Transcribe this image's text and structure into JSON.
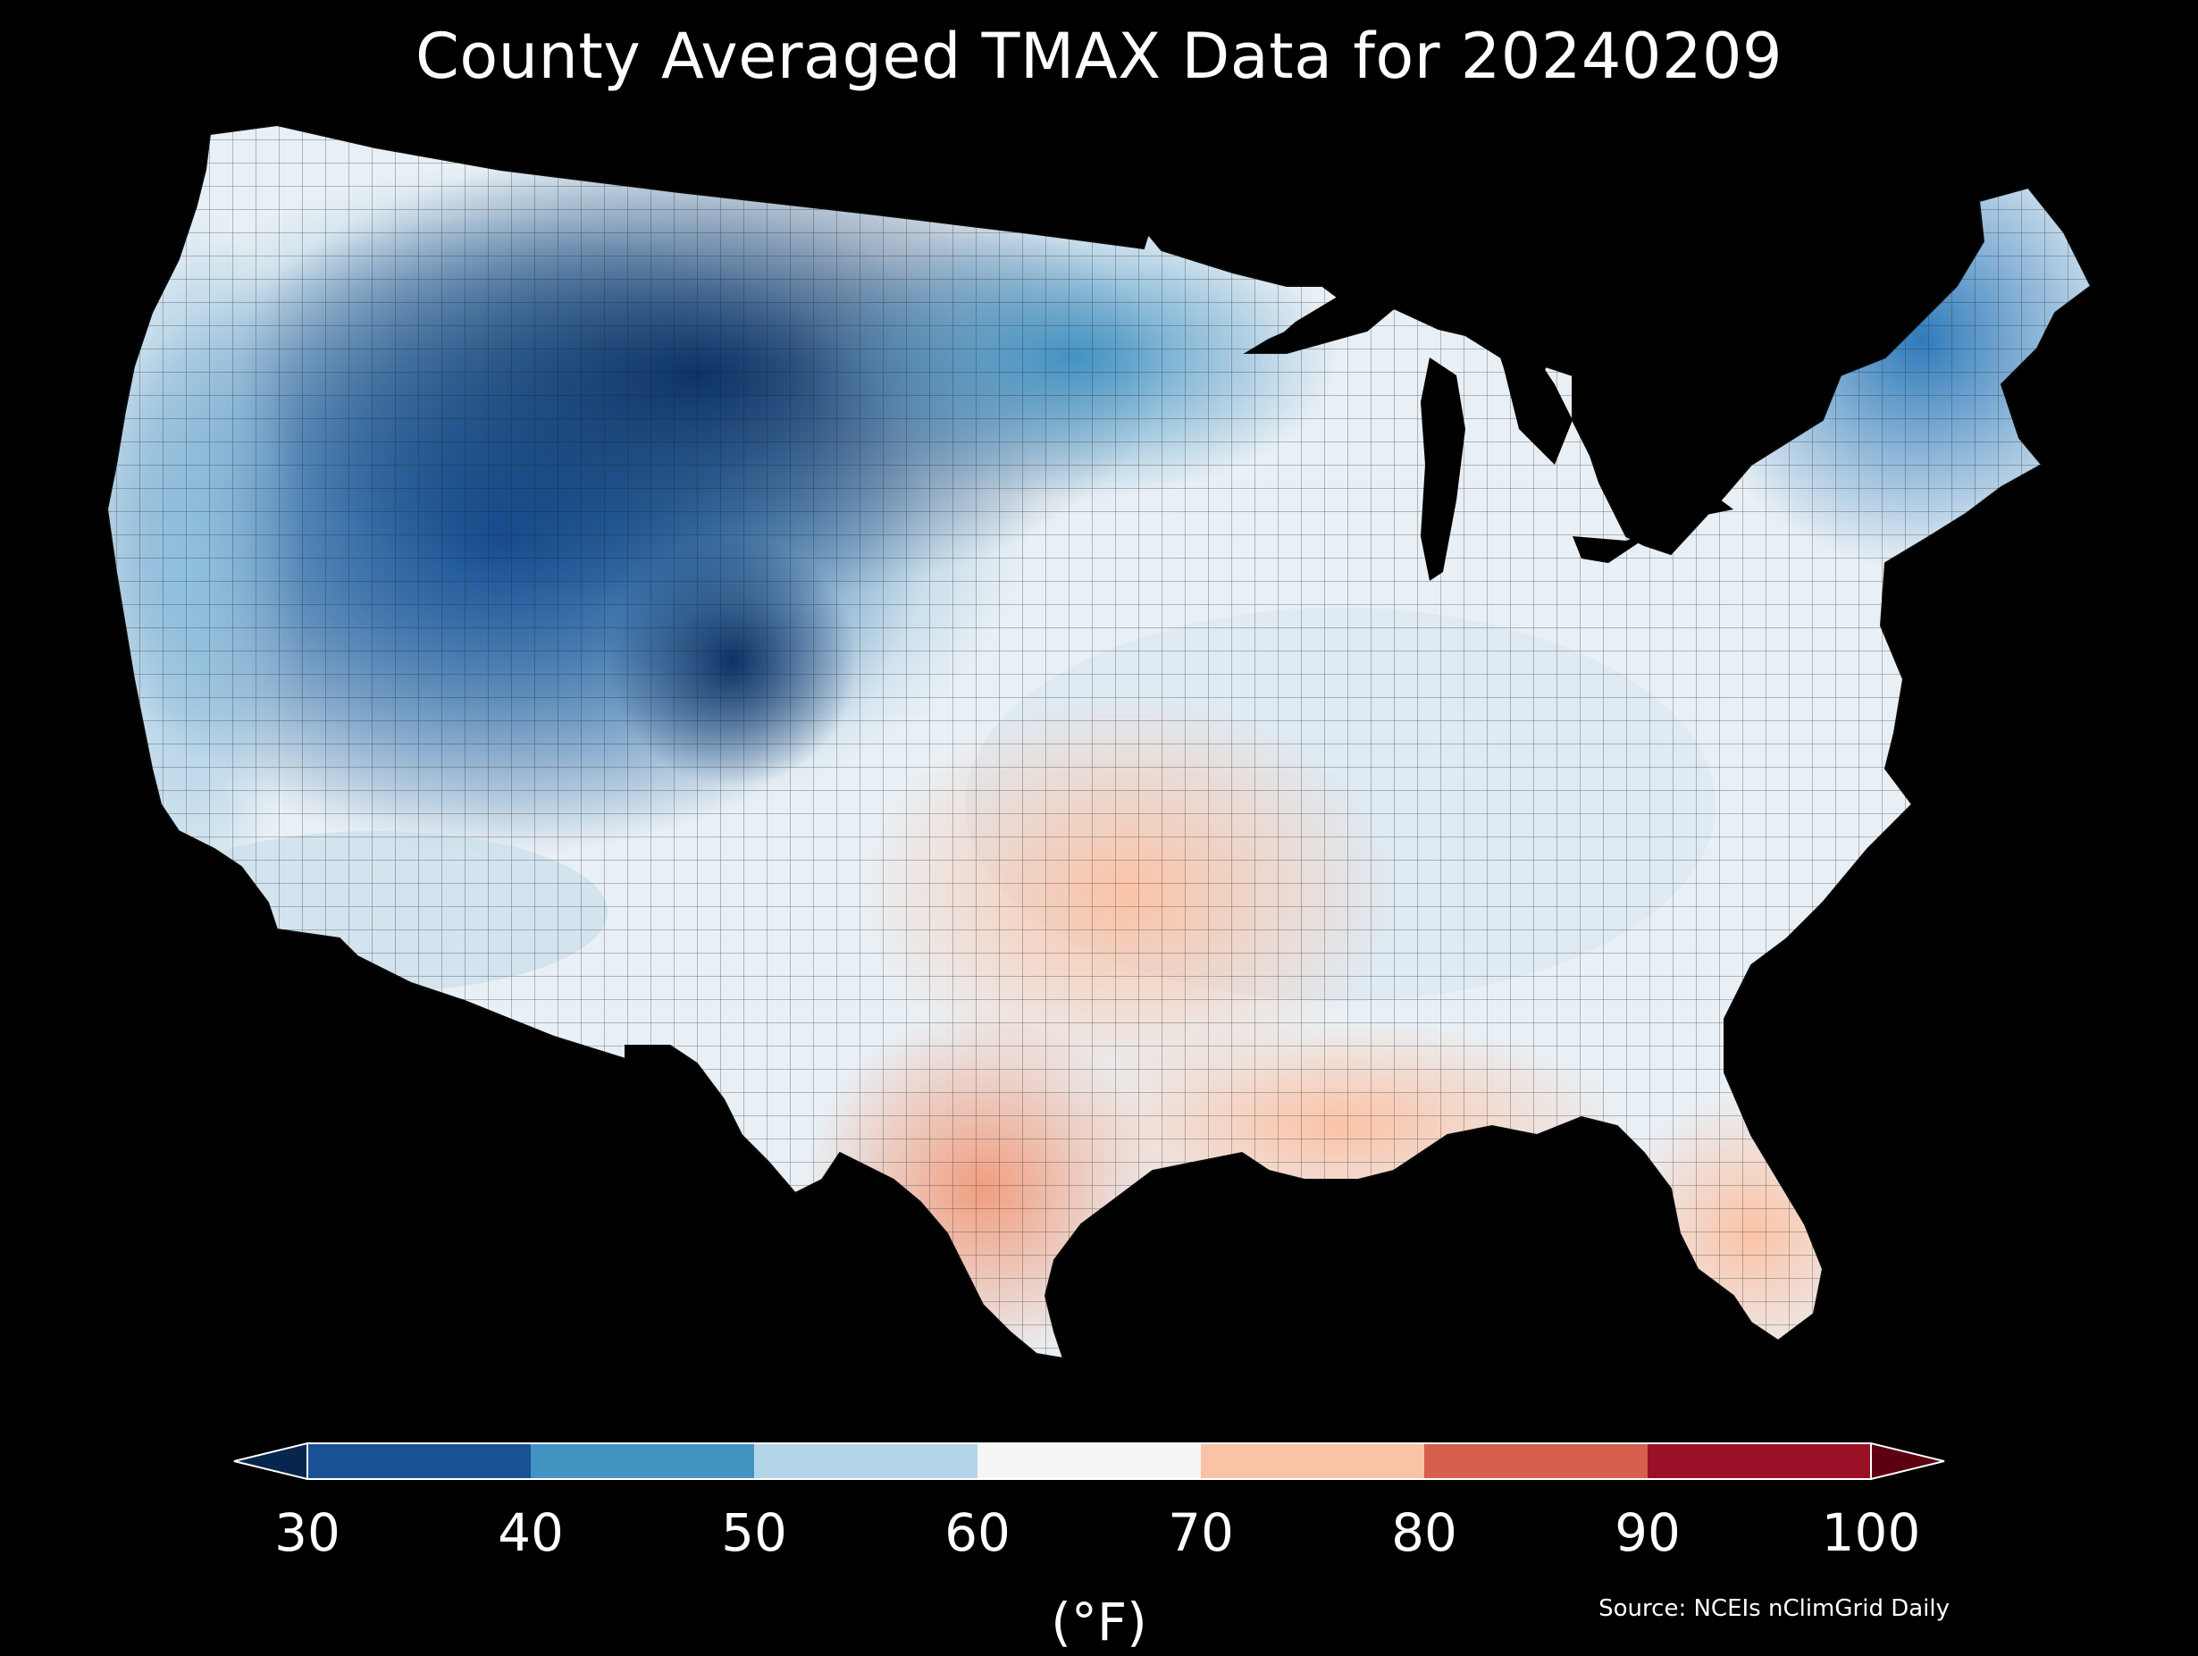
{
  "title": "County Averaged TMAX Data for 20240209",
  "colorbar": {
    "unit_label": "(°F)",
    "ticks": [
      "30",
      "40",
      "50",
      "60",
      "70",
      "80",
      "90",
      "100"
    ],
    "under_color": "#08254d",
    "over_color": "#5c0011",
    "bins": [
      {
        "min": 30,
        "max": 40,
        "color": "#1a5195"
      },
      {
        "min": 40,
        "max": 50,
        "color": "#4393c3"
      },
      {
        "min": 50,
        "max": 60,
        "color": "#b3d5e8"
      },
      {
        "min": 60,
        "max": 70,
        "color": "#f5f5f5"
      },
      {
        "min": 70,
        "max": 80,
        "color": "#fbc3a6"
      },
      {
        "min": 80,
        "max": 90,
        "color": "#d6604d"
      },
      {
        "min": 90,
        "max": 100,
        "color": "#9a1027"
      }
    ]
  },
  "source": "Source: NCEIs nClimGrid Daily",
  "map": {
    "region": "Contiguous United States",
    "background": "#000000",
    "border_color": "#1a1a1a"
  }
}
